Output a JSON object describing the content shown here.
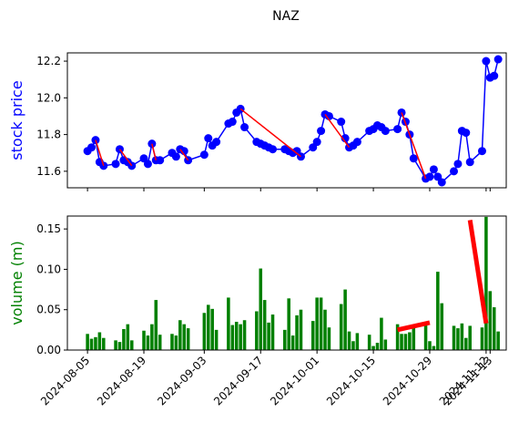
{
  "title": "NAZ",
  "chart_data": [
    {
      "type": "line",
      "ylabel": "stock price",
      "ylabel_color": "#0000ff",
      "color": "#0000ff",
      "xlim": [
        "2024-07-31",
        "2024-11-17"
      ],
      "xticks": [
        "2024-08-05",
        "2024-08-19",
        "2024-09-03",
        "2024-09-17",
        "2024-10-01",
        "2024-10-15",
        "2024-10-29",
        "2024-11-12",
        "2024-11-13"
      ],
      "ylim": [
        11.51,
        12.245
      ],
      "yticks": [
        11.6,
        11.8,
        {
          "value": 12,
          "label": "12.0"
        },
        12.2
      ],
      "x": [
        "2024-08-05",
        "2024-08-06",
        "2024-08-07",
        "2024-08-08",
        "2024-08-09",
        "2024-08-12",
        "2024-08-13",
        "2024-08-14",
        "2024-08-15",
        "2024-08-16",
        "2024-08-19",
        "2024-08-20",
        "2024-08-21",
        "2024-08-22",
        "2024-08-23",
        "2024-08-26",
        "2024-08-27",
        "2024-08-28",
        "2024-08-29",
        "2024-08-30",
        "2024-09-03",
        "2024-09-04",
        "2024-09-05",
        "2024-09-06",
        "2024-09-09",
        "2024-09-10",
        "2024-09-11",
        "2024-09-12",
        "2024-09-13",
        "2024-09-16",
        "2024-09-17",
        "2024-09-18",
        "2024-09-19",
        "2024-09-20",
        "2024-09-23",
        "2024-09-24",
        "2024-09-25",
        "2024-09-26",
        "2024-09-27",
        "2024-09-30",
        "2024-10-01",
        "2024-10-02",
        "2024-10-03",
        "2024-10-04",
        "2024-10-07",
        "2024-10-08",
        "2024-10-09",
        "2024-10-10",
        "2024-10-11",
        "2024-10-14",
        "2024-10-15",
        "2024-10-16",
        "2024-10-17",
        "2024-10-18",
        "2024-10-21",
        "2024-10-22",
        "2024-10-23",
        "2024-10-24",
        "2024-10-25",
        "2024-10-28",
        "2024-10-29",
        "2024-10-30",
        "2024-10-31",
        "2024-11-01",
        "2024-11-04",
        "2024-11-05",
        "2024-11-06",
        "2024-11-07",
        "2024-11-08",
        "2024-11-11",
        "2024-11-12",
        "2024-11-13",
        "2024-11-14",
        "2024-11-15"
      ],
      "values": [
        11.71,
        11.73,
        11.77,
        11.65,
        11.63,
        11.64,
        11.72,
        11.66,
        11.65,
        11.63,
        11.67,
        11.64,
        11.75,
        11.66,
        11.66,
        11.7,
        11.68,
        11.72,
        11.71,
        11.66,
        11.69,
        11.78,
        11.74,
        11.76,
        11.86,
        11.87,
        11.92,
        11.94,
        11.84,
        11.76,
        11.75,
        11.74,
        11.73,
        11.72,
        11.72,
        11.71,
        11.7,
        11.71,
        11.68,
        11.73,
        11.76,
        11.82,
        11.91,
        11.9,
        11.87,
        11.78,
        11.73,
        11.74,
        11.76,
        11.82,
        11.83,
        11.85,
        11.84,
        11.82,
        11.83,
        11.92,
        11.87,
        11.8,
        11.67,
        11.56,
        11.57,
        11.61,
        11.57,
        11.54,
        11.6,
        11.64,
        11.82,
        11.81,
        11.65,
        11.71,
        12.2,
        12.11,
        12.12,
        12.21
      ],
      "trend_color": "#ff0000",
      "trend_lines": [
        {
          "x": [
            "2024-08-07",
            "2024-08-09"
          ],
          "y": [
            11.77,
            11.63
          ]
        },
        {
          "x": [
            "2024-08-13",
            "2024-08-16"
          ],
          "y": [
            11.72,
            11.63
          ]
        },
        {
          "x": [
            "2024-08-21",
            "2024-08-22"
          ],
          "y": [
            11.75,
            11.66
          ]
        },
        {
          "x": [
            "2024-08-28",
            "2024-08-30"
          ],
          "y": [
            11.72,
            11.66
          ]
        },
        {
          "x": [
            "2024-09-12",
            "2024-09-27"
          ],
          "y": [
            11.94,
            11.68
          ]
        },
        {
          "x": [
            "2024-10-03",
            "2024-10-09"
          ],
          "y": [
            11.91,
            11.73
          ]
        },
        {
          "x": [
            "2024-10-22",
            "2024-10-28"
          ],
          "y": [
            11.92,
            11.56
          ]
        }
      ]
    },
    {
      "type": "bar",
      "ylabel": "volume (m)",
      "ylabel_color": "#008000",
      "color": "#008000",
      "xlim": [
        "2024-07-31",
        "2024-11-17"
      ],
      "xticks": [
        "2024-08-05",
        "2024-08-19",
        "2024-09-03",
        "2024-09-17",
        "2024-10-01",
        "2024-10-15",
        "2024-10-29",
        "2024-11-12",
        "2024-11-13"
      ],
      "ylim": [
        0,
        0.166
      ],
      "yticks": [
        {
          "value": 0,
          "label": "0.00"
        },
        0.05,
        {
          "value": 0.1,
          "label": "0.10"
        },
        0.15
      ],
      "x": [
        "2024-08-05",
        "2024-08-06",
        "2024-08-07",
        "2024-08-08",
        "2024-08-09",
        "2024-08-12",
        "2024-08-13",
        "2024-08-14",
        "2024-08-15",
        "2024-08-16",
        "2024-08-19",
        "2024-08-20",
        "2024-08-21",
        "2024-08-22",
        "2024-08-23",
        "2024-08-26",
        "2024-08-27",
        "2024-08-28",
        "2024-08-29",
        "2024-08-30",
        "2024-09-03",
        "2024-09-04",
        "2024-09-05",
        "2024-09-06",
        "2024-09-09",
        "2024-09-10",
        "2024-09-11",
        "2024-09-12",
        "2024-09-13",
        "2024-09-16",
        "2024-09-17",
        "2024-09-18",
        "2024-09-19",
        "2024-09-20",
        "2024-09-23",
        "2024-09-24",
        "2024-09-25",
        "2024-09-26",
        "2024-09-27",
        "2024-09-30",
        "2024-10-01",
        "2024-10-02",
        "2024-10-03",
        "2024-10-04",
        "2024-10-07",
        "2024-10-08",
        "2024-10-09",
        "2024-10-10",
        "2024-10-11",
        "2024-10-14",
        "2024-10-15",
        "2024-10-16",
        "2024-10-17",
        "2024-10-18",
        "2024-10-21",
        "2024-10-22",
        "2024-10-23",
        "2024-10-24",
        "2024-10-25",
        "2024-10-28",
        "2024-10-29",
        "2024-10-30",
        "2024-10-31",
        "2024-11-01",
        "2024-11-04",
        "2024-11-05",
        "2024-11-06",
        "2024-11-07",
        "2024-11-08",
        "2024-11-11",
        "2024-11-12",
        "2024-11-13",
        "2024-11-14",
        "2024-11-15"
      ],
      "values": [
        0.02,
        0.014,
        0.016,
        0.022,
        0.015,
        0.012,
        0.01,
        0.026,
        0.032,
        0.012,
        0.024,
        0.018,
        0.032,
        0.062,
        0.019,
        0.02,
        0.018,
        0.037,
        0.032,
        0.027,
        0.046,
        0.056,
        0.051,
        0.025,
        0.065,
        0.031,
        0.035,
        0.032,
        0.037,
        0.048,
        0.101,
        0.062,
        0.034,
        0.044,
        0.025,
        0.064,
        0.018,
        0.043,
        0.05,
        0.036,
        0.065,
        0.065,
        0.05,
        0.028,
        0.057,
        0.075,
        0.023,
        0.011,
        0.021,
        0.019,
        0.005,
        0.009,
        0.04,
        0.013,
        0.032,
        0.02,
        0.02,
        0.022,
        0.03,
        0.032,
        0.011,
        0.005,
        0.097,
        0.058,
        0.03,
        0.027,
        0.033,
        0.015,
        0.03,
        0.028,
        0.165,
        0.073,
        0.053,
        0.023
      ],
      "trend_color": "#ff0000",
      "trend_lines": [
        {
          "x": [
            "2024-10-21",
            "2024-10-29"
          ],
          "y": [
            0.025,
            0.034
          ]
        },
        {
          "x": [
            "2024-11-08",
            "2024-11-12"
          ],
          "y": [
            0.161,
            0.033
          ]
        }
      ]
    }
  ]
}
